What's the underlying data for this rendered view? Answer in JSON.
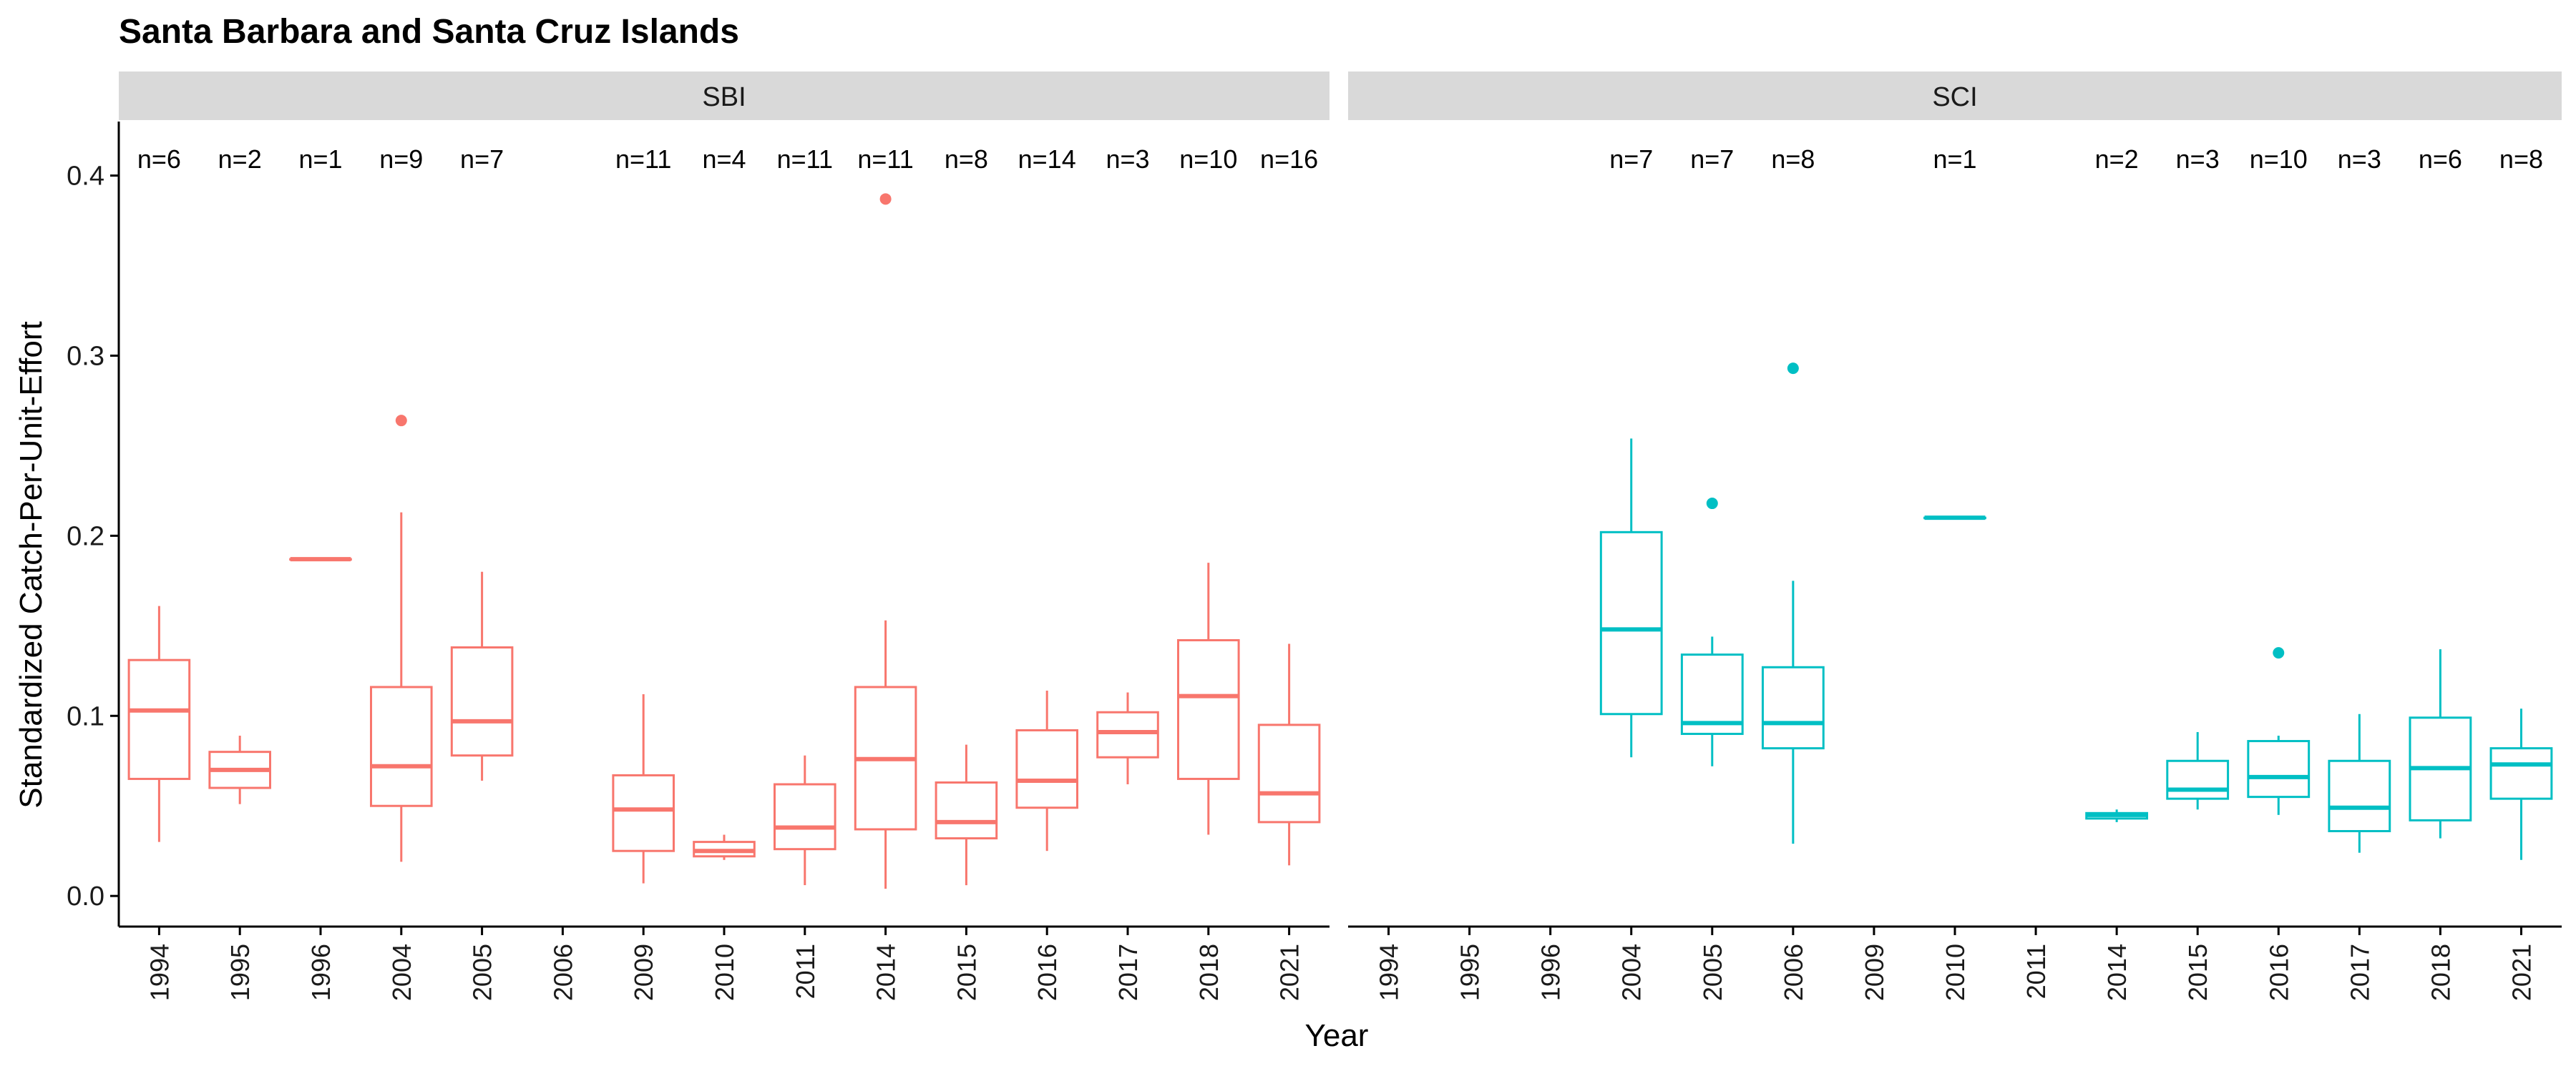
{
  "chart_data": {
    "type": "box",
    "title": "Santa Barbara and Santa Cruz Islands",
    "xlabel": "Year",
    "ylabel": "Standardized Catch-Per-Unit-Effort",
    "ylim": [
      -0.017,
      0.43
    ],
    "yticks": [
      "0.0",
      "0.1",
      "0.2",
      "0.3",
      "0.4"
    ],
    "categories": [
      "1994",
      "1995",
      "1996",
      "2004",
      "2005",
      "2006",
      "2009",
      "2010",
      "2011",
      "2014",
      "2015",
      "2016",
      "2017",
      "2018",
      "2021"
    ],
    "grid": false,
    "legend": "none",
    "colors": {
      "SBI": "#F8766D",
      "SCI": "#00BFC4",
      "strip": "#D9D9D9",
      "axis": "#000000"
    },
    "panels": [
      {
        "name": "SBI",
        "series": [
          {
            "x": "1994",
            "n": "n=6",
            "min": 0.03,
            "q1": 0.065,
            "median": 0.103,
            "q3": 0.131,
            "max": 0.161,
            "outliers": []
          },
          {
            "x": "1995",
            "n": "n=2",
            "min": 0.051,
            "q1": 0.06,
            "median": 0.07,
            "q3": 0.08,
            "max": 0.089,
            "outliers": []
          },
          {
            "x": "1996",
            "n": "n=1",
            "min": 0.187,
            "q1": 0.187,
            "median": 0.187,
            "q3": 0.187,
            "max": 0.187,
            "outliers": []
          },
          {
            "x": "2004",
            "n": "n=9",
            "min": 0.019,
            "q1": 0.05,
            "median": 0.072,
            "q3": 0.116,
            "max": 0.213,
            "outliers": [
              0.264
            ]
          },
          {
            "x": "2005",
            "n": "n=7",
            "min": 0.064,
            "q1": 0.078,
            "median": 0.097,
            "q3": 0.138,
            "max": 0.18,
            "outliers": []
          },
          {
            "x": "2006",
            "n": "",
            "empty": true
          },
          {
            "x": "2009",
            "n": "n=11",
            "min": 0.007,
            "q1": 0.025,
            "median": 0.048,
            "q3": 0.067,
            "max": 0.112,
            "outliers": []
          },
          {
            "x": "2010",
            "n": "n=4",
            "min": 0.02,
            "q1": 0.022,
            "median": 0.025,
            "q3": 0.03,
            "max": 0.034,
            "outliers": []
          },
          {
            "x": "2011",
            "n": "n=11",
            "min": 0.006,
            "q1": 0.026,
            "median": 0.038,
            "q3": 0.062,
            "max": 0.078,
            "outliers": []
          },
          {
            "x": "2014",
            "n": "n=11",
            "min": 0.004,
            "q1": 0.037,
            "median": 0.076,
            "q3": 0.116,
            "max": 0.153,
            "outliers": [
              0.387
            ]
          },
          {
            "x": "2015",
            "n": "n=8",
            "min": 0.006,
            "q1": 0.032,
            "median": 0.041,
            "q3": 0.063,
            "max": 0.084,
            "outliers": []
          },
          {
            "x": "2016",
            "n": "n=14",
            "min": 0.025,
            "q1": 0.049,
            "median": 0.064,
            "q3": 0.092,
            "max": 0.114,
            "outliers": []
          },
          {
            "x": "2017",
            "n": "n=3",
            "min": 0.062,
            "q1": 0.077,
            "median": 0.091,
            "q3": 0.102,
            "max": 0.113,
            "outliers": []
          },
          {
            "x": "2018",
            "n": "n=10",
            "min": 0.034,
            "q1": 0.065,
            "median": 0.111,
            "q3": 0.142,
            "max": 0.185,
            "outliers": []
          },
          {
            "x": "2021",
            "n": "n=16",
            "min": 0.017,
            "q1": 0.041,
            "median": 0.057,
            "q3": 0.095,
            "max": 0.14,
            "outliers": []
          }
        ]
      },
      {
        "name": "SCI",
        "series": [
          {
            "x": "1994",
            "n": "",
            "empty": true
          },
          {
            "x": "1995",
            "n": "",
            "empty": true
          },
          {
            "x": "1996",
            "n": "",
            "empty": true
          },
          {
            "x": "2004",
            "n": "n=7",
            "min": 0.077,
            "q1": 0.101,
            "median": 0.148,
            "q3": 0.202,
            "max": 0.254,
            "outliers": []
          },
          {
            "x": "2005",
            "n": "n=7",
            "min": 0.072,
            "q1": 0.09,
            "median": 0.096,
            "q3": 0.134,
            "max": 0.144,
            "outliers": [
              0.218
            ]
          },
          {
            "x": "2006",
            "n": "n=8",
            "min": 0.029,
            "q1": 0.082,
            "median": 0.096,
            "q3": 0.127,
            "max": 0.175,
            "outliers": [
              0.293
            ]
          },
          {
            "x": "2009",
            "n": "",
            "empty": true
          },
          {
            "x": "2010",
            "n": "n=1",
            "min": 0.21,
            "q1": 0.21,
            "median": 0.21,
            "q3": 0.21,
            "max": 0.21,
            "outliers": []
          },
          {
            "x": "2011",
            "n": "",
            "empty": true
          },
          {
            "x": "2014",
            "n": "n=2",
            "min": 0.041,
            "q1": 0.043,
            "median": 0.045,
            "q3": 0.046,
            "max": 0.048,
            "outliers": []
          },
          {
            "x": "2015",
            "n": "n=3",
            "min": 0.048,
            "q1": 0.054,
            "median": 0.059,
            "q3": 0.075,
            "max": 0.091,
            "outliers": []
          },
          {
            "x": "2016",
            "n": "n=10",
            "min": 0.045,
            "q1": 0.055,
            "median": 0.066,
            "q3": 0.086,
            "max": 0.089,
            "outliers": [
              0.135
            ]
          },
          {
            "x": "2017",
            "n": "n=3",
            "min": 0.024,
            "q1": 0.036,
            "median": 0.049,
            "q3": 0.075,
            "max": 0.101,
            "outliers": []
          },
          {
            "x": "2018",
            "n": "n=6",
            "min": 0.032,
            "q1": 0.042,
            "median": 0.071,
            "q3": 0.099,
            "max": 0.137,
            "outliers": []
          },
          {
            "x": "2021",
            "n": "n=8",
            "min": 0.02,
            "q1": 0.054,
            "median": 0.073,
            "q3": 0.082,
            "max": 0.104,
            "outliers": []
          }
        ]
      }
    ]
  }
}
